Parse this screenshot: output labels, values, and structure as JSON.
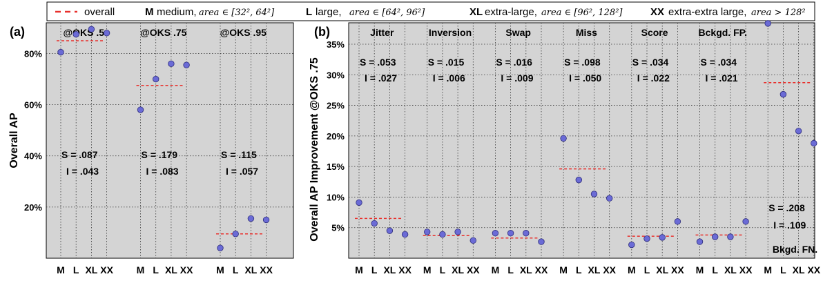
{
  "legend": {
    "overall_label": "overall",
    "items": [
      {
        "code": "M",
        "name": "medium,",
        "formula": "area ∈ [32², 64²]"
      },
      {
        "code": "L",
        "name": "large,",
        "formula": "area ∈ [64², 96²]"
      },
      {
        "code": "XL",
        "name": "extra-large,",
        "formula": "area ∈ [96², 128²]"
      },
      {
        "code": "XX",
        "name": "extra-extra large,",
        "formula": "area > 128²"
      }
    ]
  },
  "colors": {
    "point": "#6b6bd6",
    "overall_line": "#e8302c",
    "panel_bg": "#d4d4d4"
  },
  "chart_data": [
    {
      "type": "scatter",
      "panel_label": "(a)",
      "ylabel": "Overall AP",
      "ylim": [
        0,
        92
      ],
      "yticks": [
        20,
        40,
        60,
        80
      ],
      "ytick_labels": [
        "20%",
        "40%",
        "60%",
        "80%"
      ],
      "grid": true,
      "categories": [
        "M",
        "L",
        "XL",
        "XX"
      ],
      "groups": [
        {
          "title": "@OKS .5",
          "values": [
            80.5,
            87.5,
            89.5,
            88
          ],
          "overall": 85,
          "S": "S = .087",
          "I": "I = .043"
        },
        {
          "title": "@OKS .75",
          "values": [
            58,
            70,
            76,
            75.5
          ],
          "overall": 67.5,
          "S": "S = .179",
          "I": "I = .083"
        },
        {
          "title": "@OKS .95",
          "values": [
            4,
            9.5,
            15.5,
            15
          ],
          "overall": 9.5,
          "S": "S = .115",
          "I": "I = .057"
        }
      ]
    },
    {
      "type": "scatter",
      "panel_label": "(b)",
      "ylabel": "Overall AP Improvement @OKS .75",
      "ylim": [
        0,
        38.5
      ],
      "yticks": [
        5,
        10,
        15,
        20,
        25,
        30,
        35
      ],
      "ytick_labels": [
        "5%",
        "10%",
        "15%",
        "20%",
        "25%",
        "30%",
        "35%"
      ],
      "grid": true,
      "categories": [
        "M",
        "L",
        "XL",
        "XX"
      ],
      "groups": [
        {
          "title": "Jitter",
          "values": [
            9.1,
            5.7,
            4.5,
            3.9
          ],
          "overall": 6.5,
          "S": "S = .053",
          "I": "I = .027"
        },
        {
          "title": "Inversion",
          "values": [
            4.3,
            3.9,
            4.3,
            2.9
          ],
          "overall": 3.7,
          "S": "S = .015",
          "I": "I = .006"
        },
        {
          "title": "Swap",
          "values": [
            4.1,
            4.1,
            4.1,
            2.7
          ],
          "overall": 3.3,
          "S": "S = .016",
          "I": "I = .009"
        },
        {
          "title": "Miss",
          "values": [
            19.6,
            12.8,
            10.5,
            9.8
          ],
          "overall": 14.6,
          "S": "S = .098",
          "I": "I = .050"
        },
        {
          "title": "Score",
          "values": [
            2.2,
            3.2,
            3.4,
            6.0
          ],
          "overall": 3.6,
          "S": "S = .034",
          "I": "I = .022"
        },
        {
          "title": "Bckgd. FP.",
          "values": [
            2.7,
            3.5,
            3.5,
            6.0
          ],
          "overall": 3.8,
          "S": "S = .034",
          "I": "I = .021"
        },
        {
          "title": "Bkgd. FN.",
          "values": [
            38.4,
            26.8,
            20.8,
            18.8
          ],
          "overall": 28.7,
          "S": "S = .208",
          "I": "I = .109"
        }
      ]
    }
  ]
}
